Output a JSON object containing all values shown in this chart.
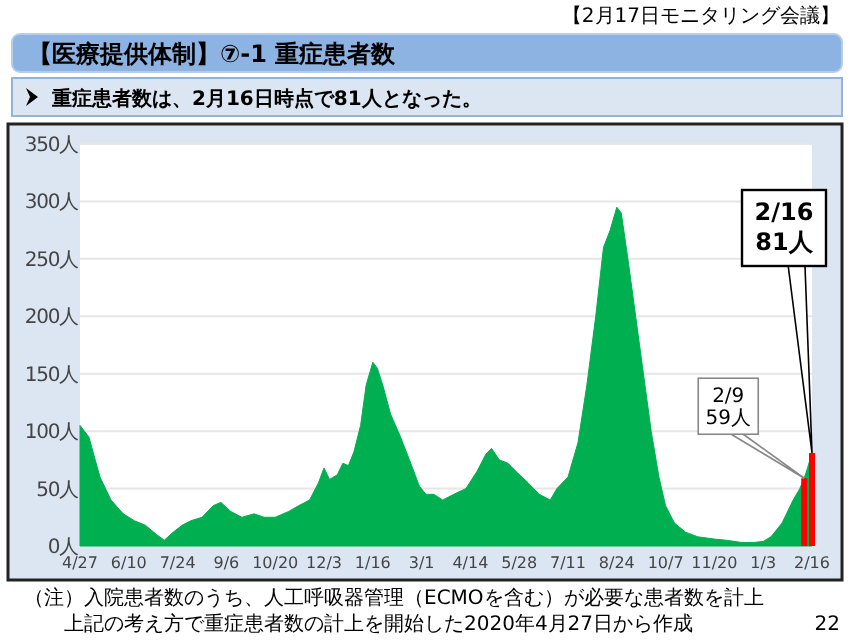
{
  "chart_data": {
    "type": "area",
    "title": "【医療提供体制】⑦-1 重症患者数",
    "subtitle": "重症患者数は、2月16日時点で81人となった。",
    "color": "#00b050",
    "grid": "y",
    "x": [
      "2020-04-27",
      "2020-05-05",
      "2020-05-15",
      "2020-05-25",
      "2020-06-05",
      "2020-06-15",
      "2020-06-25",
      "2020-07-05",
      "2020-07-12",
      "2020-07-20",
      "2020-07-28",
      "2020-08-05",
      "2020-08-15",
      "2020-08-25",
      "2020-09-01",
      "2020-09-10",
      "2020-09-20",
      "2020-10-01",
      "2020-10-10",
      "2020-10-20",
      "2020-11-01",
      "2020-11-10",
      "2020-11-20",
      "2020-11-28",
      "2020-12-03",
      "2020-12-08",
      "2020-12-15",
      "2020-12-20",
      "2020-12-25",
      "2020-12-30",
      "2021-01-05",
      "2021-01-10",
      "2021-01-16",
      "2021-01-20",
      "2021-01-25",
      "2021-02-01",
      "2021-02-10",
      "2021-02-20",
      "2021-02-27",
      "2021-03-05",
      "2021-03-12",
      "2021-03-20",
      "2021-03-30",
      "2021-04-10",
      "2021-04-20",
      "2021-04-28",
      "2021-05-03",
      "2021-05-10",
      "2021-05-18",
      "2021-05-25",
      "2021-06-05",
      "2021-06-15",
      "2021-06-25",
      "2021-07-01",
      "2021-07-11",
      "2021-07-20",
      "2021-07-28",
      "2021-08-05",
      "2021-08-12",
      "2021-08-18",
      "2021-08-24",
      "2021-08-28",
      "2021-09-03",
      "2021-09-10",
      "2021-09-17",
      "2021-09-24",
      "2021-10-01",
      "2021-10-07",
      "2021-10-15",
      "2021-10-25",
      "2021-11-05",
      "2021-11-20",
      "2021-12-01",
      "2021-12-15",
      "2021-12-25",
      "2022-01-03",
      "2022-01-10",
      "2022-01-20",
      "2022-01-30",
      "2022-02-05",
      "2022-02-09",
      "2022-02-12",
      "2022-02-16"
    ],
    "values": [
      105,
      95,
      60,
      40,
      28,
      22,
      18,
      10,
      5,
      12,
      18,
      22,
      25,
      35,
      38,
      30,
      25,
      28,
      25,
      25,
      30,
      35,
      40,
      55,
      68,
      58,
      62,
      72,
      70,
      82,
      105,
      140,
      160,
      155,
      140,
      115,
      95,
      70,
      52,
      45,
      45,
      40,
      45,
      50,
      65,
      80,
      85,
      75,
      72,
      65,
      55,
      45,
      40,
      50,
      60,
      90,
      140,
      200,
      260,
      275,
      295,
      290,
      250,
      200,
      150,
      100,
      60,
      35,
      20,
      12,
      8,
      6,
      5,
      3,
      3,
      4,
      8,
      20,
      40,
      50,
      59,
      68,
      81
    ],
    "series": [
      {
        "type": "bar",
        "color": "#ff0000",
        "x": [
          "2022-02-09",
          "2022-02-16"
        ],
        "values": [
          59,
          81
        ]
      }
    ],
    "xlim": [
      "2020-04-27",
      "2022-02-16"
    ],
    "xticks": [
      {
        "value": "2020-04-27",
        "label": "4/27"
      },
      {
        "value": "2020-06-10",
        "label": "6/10"
      },
      {
        "value": "2020-07-24",
        "label": "7/24"
      },
      {
        "value": "2020-09-06",
        "label": "9/6"
      },
      {
        "value": "2020-10-20",
        "label": "10/20"
      },
      {
        "value": "2020-12-03",
        "label": "12/3"
      },
      {
        "value": "2021-01-16",
        "label": "1/16"
      },
      {
        "value": "2021-03-01",
        "label": "3/1"
      },
      {
        "value": "2021-04-14",
        "label": "4/14"
      },
      {
        "value": "2021-05-28",
        "label": "5/28"
      },
      {
        "value": "2021-07-11",
        "label": "7/11"
      },
      {
        "value": "2021-08-24",
        "label": "8/24"
      },
      {
        "value": "2021-10-07",
        "label": "10/7"
      },
      {
        "value": "2021-11-20",
        "label": "11/20"
      },
      {
        "value": "2022-01-03",
        "label": "1/3"
      },
      {
        "value": "2022-02-16",
        "label": "2/16"
      }
    ],
    "ylim": [
      0,
      350
    ],
    "yticks": [
      {
        "value": 0,
        "label": "0人"
      },
      {
        "value": 50,
        "label": "50人"
      },
      {
        "value": 100,
        "label": "100人"
      },
      {
        "value": 150,
        "label": "150人"
      },
      {
        "value": 200,
        "label": "200人"
      },
      {
        "value": 250,
        "label": "250人"
      },
      {
        "value": 300,
        "label": "300人"
      },
      {
        "value": 350,
        "label": "350人"
      }
    ],
    "annotations": [
      "【2月17日モニタリング会議】",
      "2/9",
      "59人",
      "2/16",
      "81人",
      "（注）入院患者数のうち、人工呼吸器管理（ECMOを含む）が必要な患者数を計上",
      "上記の考え方で重症患者数の計上を開始した2020年4月27日から作成",
      "22"
    ]
  }
}
